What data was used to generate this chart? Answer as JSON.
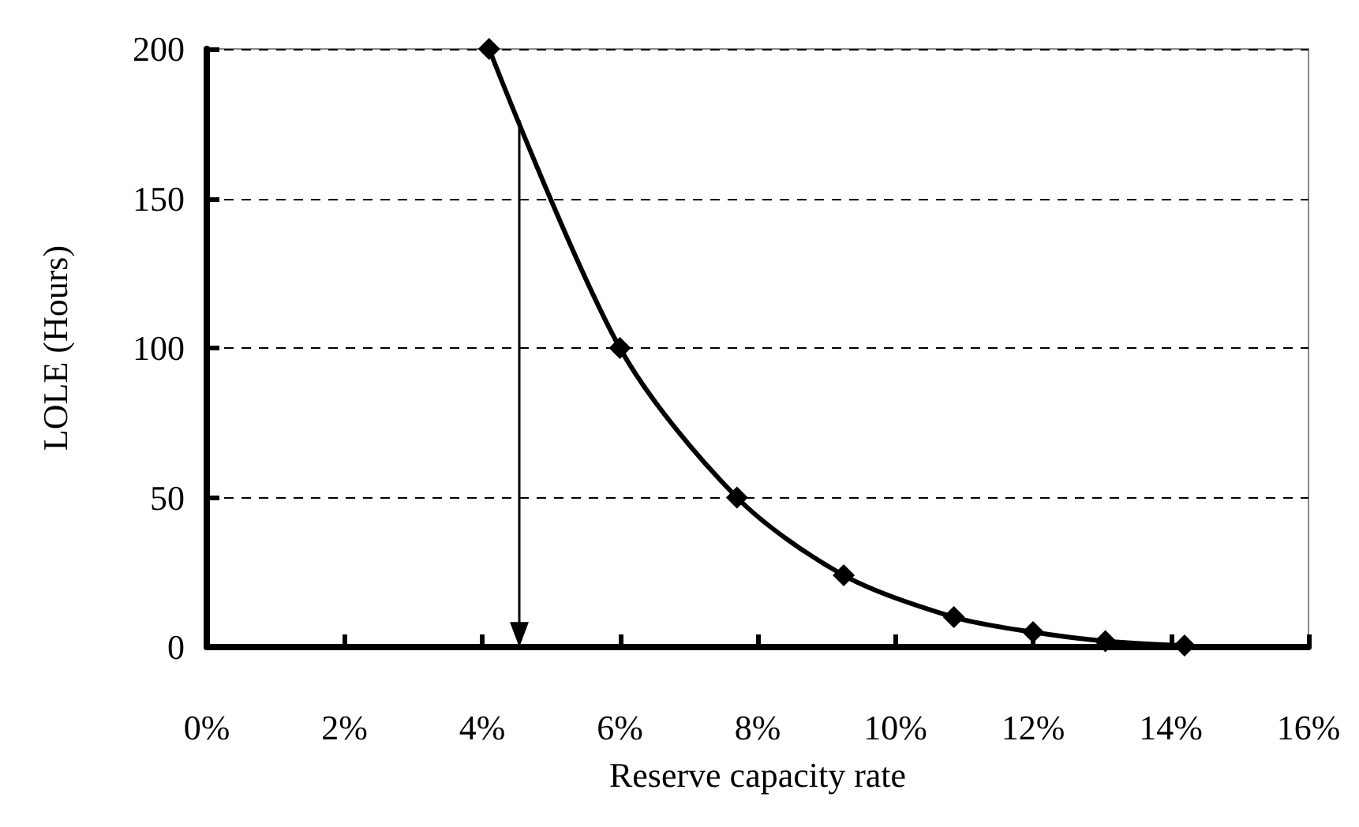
{
  "chart_data": {
    "type": "line",
    "xlabel": "Reserve capacity rate",
    "ylabel": "LOLE (Hours)",
    "x": [
      4.1,
      6.0,
      7.7,
      9.25,
      10.85,
      12.0,
      13.05,
      14.2
    ],
    "series": [
      {
        "color": "#000000",
        "values": [
          200,
          100,
          50,
          24,
          10,
          5,
          2,
          0.5
        ]
      }
    ],
    "xlim": [
      0,
      16
    ],
    "xticks": [
      {
        "value": 0,
        "label": "0%"
      },
      {
        "value": 2,
        "label": "2%"
      },
      {
        "value": 4,
        "label": "4%"
      },
      {
        "value": 6,
        "label": "6%"
      },
      {
        "value": 8,
        "label": "8%"
      },
      {
        "value": 10,
        "label": "10%"
      },
      {
        "value": 12,
        "label": "12%"
      },
      {
        "value": 14,
        "label": "14%"
      },
      {
        "value": 16,
        "label": "16%"
      }
    ],
    "ylim": [
      0,
      200
    ],
    "yticks": [
      0,
      50,
      100,
      150,
      200
    ],
    "grid": "y",
    "marker": "diamond",
    "line_style": "solid",
    "ref_lines": [
      {
        "axis": "x",
        "value": 4.55,
        "color": "#000000"
      }
    ]
  }
}
